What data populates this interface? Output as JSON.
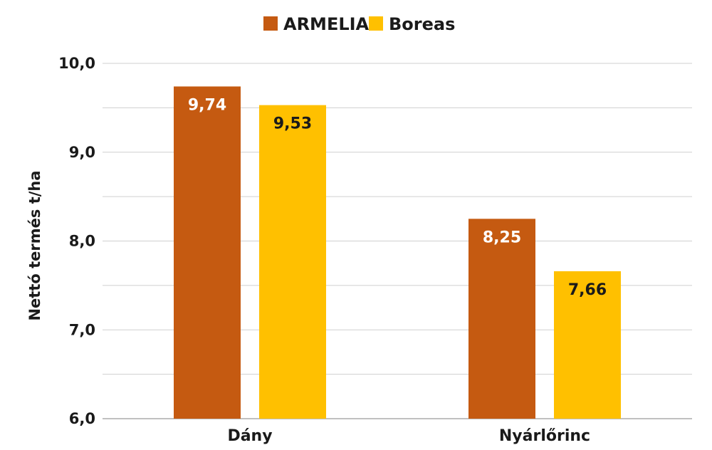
{
  "chart_data": {
    "type": "bar",
    "categories": [
      "Dány",
      "Nyárlőrinc"
    ],
    "series": [
      {
        "name": "ARMELIA",
        "color": "#C55A11",
        "label_color": "#ffffff",
        "values": [
          9.74,
          8.25
        ],
        "value_labels": [
          "9,74",
          "8,25"
        ]
      },
      {
        "name": "Boreas",
        "color": "#FFC000",
        "label_color": "#1a1a1a",
        "values": [
          9.53,
          7.66
        ],
        "value_labels": [
          "9,53",
          "7,66"
        ]
      }
    ],
    "title": "",
    "xlabel": "",
    "ylabel": "Nettó termés t/ha",
    "ylim": [
      6.0,
      10.0
    ],
    "yticks": [
      6.0,
      7.0,
      8.0,
      9.0,
      10.0
    ],
    "ytick_labels": [
      "6,0",
      "7,0",
      "8,0",
      "9,0",
      "10,0"
    ],
    "minor_grid": true,
    "grid": true,
    "legend_position": "top-center"
  }
}
